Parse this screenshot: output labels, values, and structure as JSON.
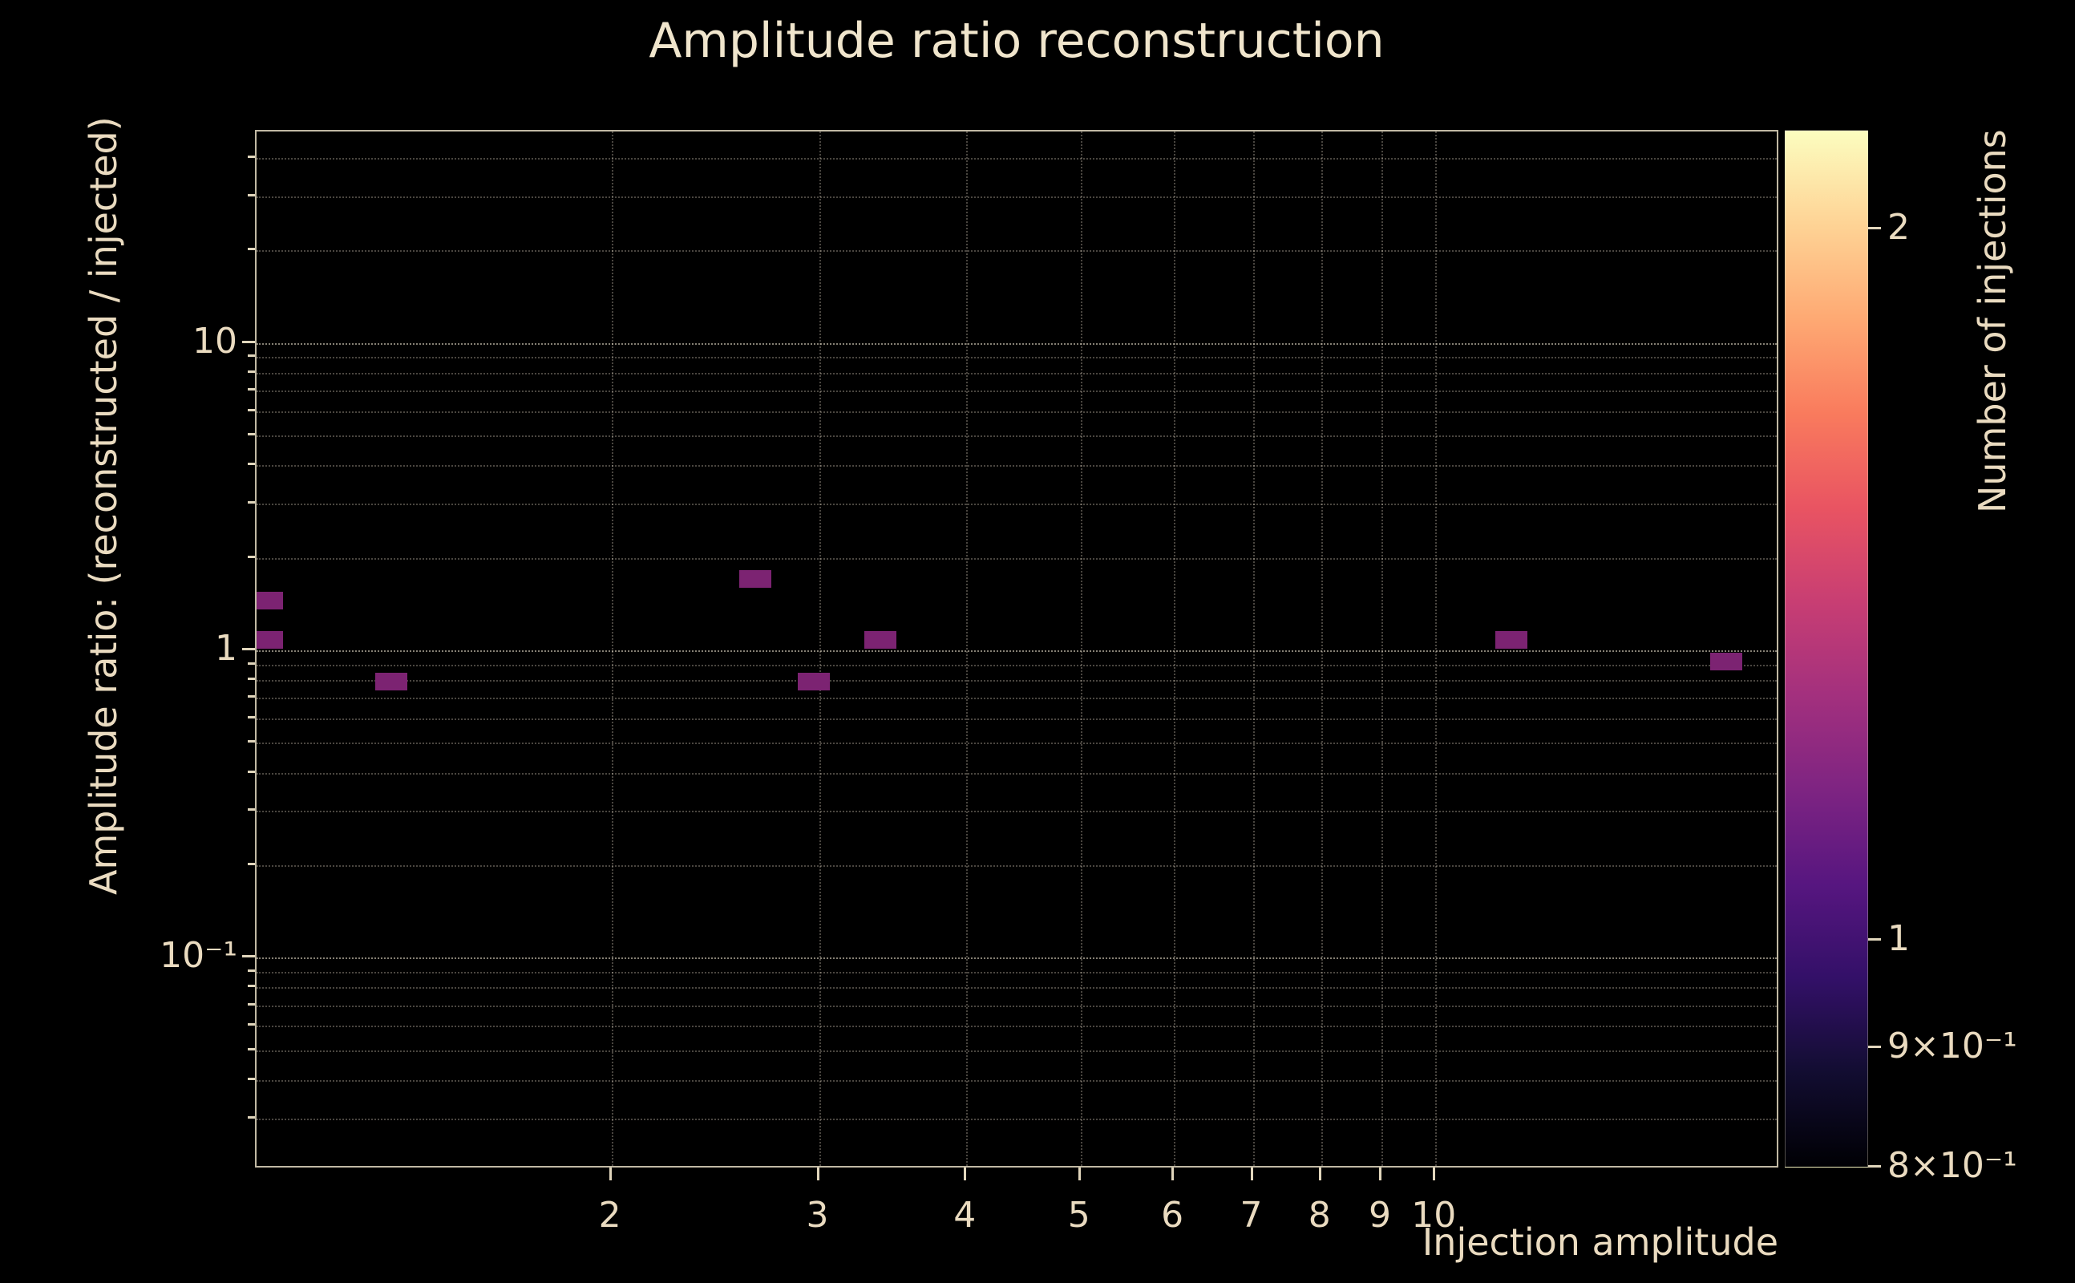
{
  "page": {
    "background": "#000000"
  },
  "chart_data": {
    "type": "heatmap",
    "title": "Amplitude ratio reconstruction",
    "xlabel": "Injection amplitude",
    "ylabel": "Amplitude ratio: (reconstructed / injected)",
    "xscale": "log",
    "yscale": "log",
    "xlim": [
      1.0,
      19.6
    ],
    "ylim": [
      0.0205,
      48.8
    ],
    "grid": {
      "style": "dotted",
      "minor_gridlines": true
    },
    "x_ticks": [
      {
        "value": 2,
        "label": "2"
      },
      {
        "value": 3,
        "label": "3"
      },
      {
        "value": 4,
        "label": "4"
      },
      {
        "value": 5,
        "label": "5"
      },
      {
        "value": 6,
        "label": "6"
      },
      {
        "value": 7,
        "label": "7"
      },
      {
        "value": 8,
        "label": "8"
      },
      {
        "value": 9,
        "label": "9"
      },
      {
        "value": 10,
        "label": "10"
      }
    ],
    "y_ticks": [
      {
        "value": 10,
        "label": "10"
      },
      {
        "value": 1,
        "label": "1"
      },
      {
        "value": 0.1,
        "label": "10⁻¹"
      }
    ],
    "cells": [
      {
        "x": 1.02,
        "y": 1.45,
        "count": 1
      },
      {
        "x": 1.02,
        "y": 1.08,
        "count": 1
      },
      {
        "x": 1.3,
        "y": 0.79,
        "count": 1
      },
      {
        "x": 2.65,
        "y": 1.71,
        "count": 1
      },
      {
        "x": 2.97,
        "y": 0.79,
        "count": 1
      },
      {
        "x": 3.38,
        "y": 1.08,
        "count": 1
      },
      {
        "x": 11.6,
        "y": 1.08,
        "count": 1
      },
      {
        "x": 17.65,
        "y": 0.92,
        "count": 1
      }
    ],
    "colorbar": {
      "label": "Number of injections",
      "scale": "log",
      "min": 0.8,
      "max": 2.2,
      "ticks": [
        {
          "value": 2,
          "label": "2"
        },
        {
          "value": 1,
          "label": "1"
        },
        {
          "value": 0.9,
          "label": "9×10⁻¹"
        },
        {
          "value": 0.8,
          "label": "8×10⁻¹"
        }
      ],
      "colormap": "magma",
      "colormap_stops": [
        "#000004",
        "#120d31",
        "#331068",
        "#571680",
        "#7e2482",
        "#a3307e",
        "#c83e73",
        "#e95462",
        "#f97b5d",
        "#fea973",
        "#fed395",
        "#fcfdbf"
      ]
    },
    "colors": {
      "background": "#000000",
      "text": "#eadbc0",
      "grid": "#f3e9d4",
      "spine": "#e1d6bc",
      "cell": "#7c2372"
    }
  }
}
